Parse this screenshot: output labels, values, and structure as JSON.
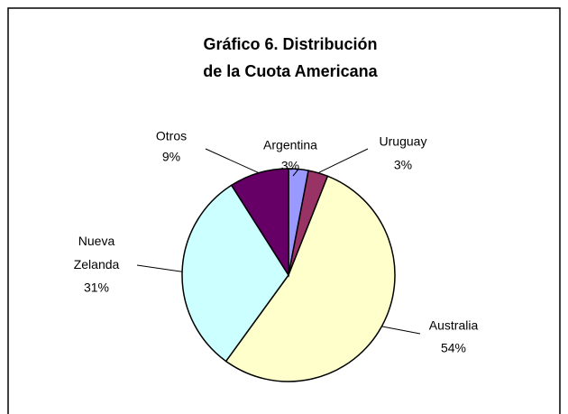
{
  "chart_data": {
    "type": "pie",
    "title": [
      "Gráfico 6. Distribución",
      "de la Cuota Americana"
    ],
    "categories": [
      "Argentina",
      "Uruguay",
      "Australia",
      "Nueva Zelanda",
      "Otros"
    ],
    "values": [
      3,
      3,
      54,
      31,
      9
    ],
    "value_labels": [
      "3%",
      "3%",
      "54%",
      "31%",
      "9%"
    ],
    "colors": [
      "#9999ff",
      "#993366",
      "#ffffcc",
      "#ccffff",
      "#660066"
    ]
  }
}
